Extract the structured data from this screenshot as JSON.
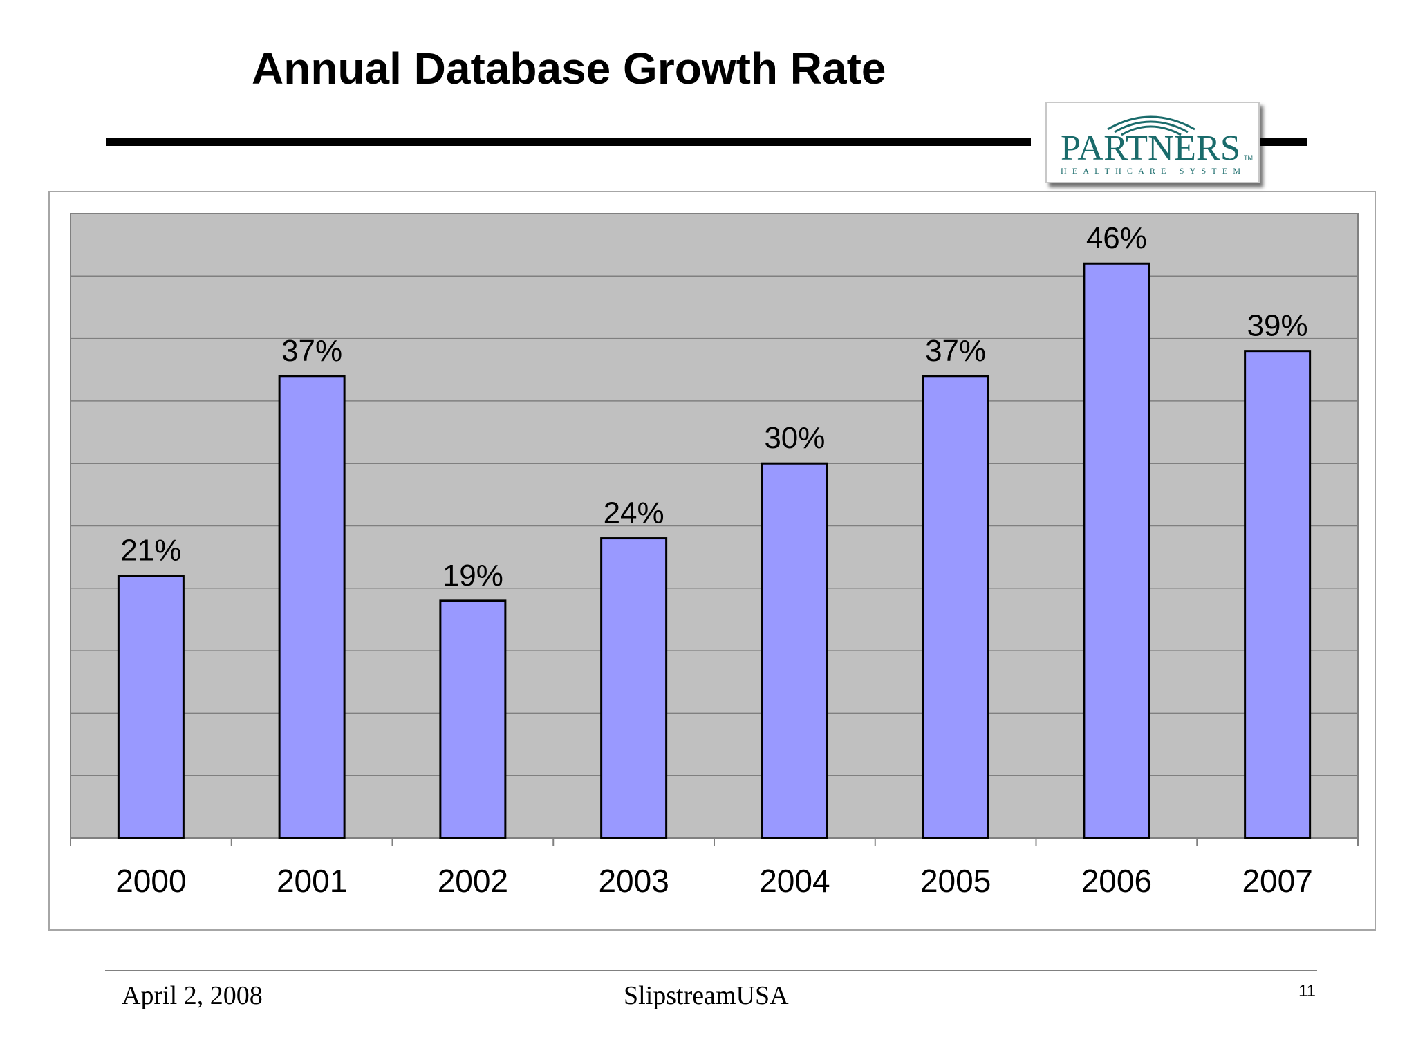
{
  "slide": {
    "title": "Annual Database Growth Rate"
  },
  "logo": {
    "name": "PARTNERS",
    "trademark": "TM",
    "subtitle": "HEALTHCARE SYSTEM",
    "color": "#1a6b6b"
  },
  "footer": {
    "date": "April 2, 2008",
    "organization": "SlipstreamUSA",
    "page_number": "11"
  },
  "colors": {
    "bar_fill": "#9999ff",
    "bar_stroke": "#000000",
    "plot_background": "#c0c0c0",
    "gridline": "#7f7f7f"
  },
  "chart_data": {
    "type": "bar",
    "categories": [
      "2000",
      "2001",
      "2002",
      "2003",
      "2004",
      "2005",
      "2006",
      "2007"
    ],
    "values": [
      21,
      37,
      19,
      24,
      30,
      37,
      46,
      39
    ],
    "data_labels": [
      "21%",
      "37%",
      "19%",
      "24%",
      "30%",
      "37%",
      "46%",
      "39%"
    ],
    "title": "",
    "xlabel": "",
    "ylabel": "",
    "ylim": [
      0,
      50
    ],
    "grid": true,
    "legend": "none"
  }
}
